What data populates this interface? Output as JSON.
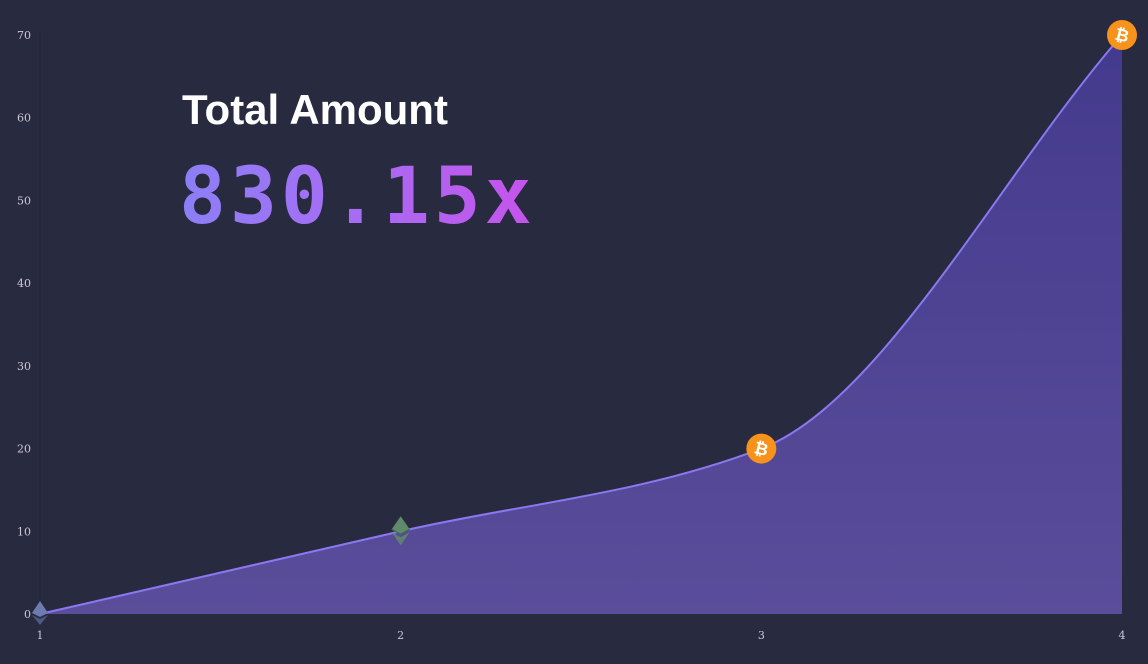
{
  "headline": {
    "title": "Total Amount",
    "multiplier": "830.15x"
  },
  "chart_data": {
    "type": "area",
    "x": [
      1,
      2,
      3,
      4
    ],
    "series": [
      {
        "values": [
          0,
          10,
          20,
          70
        ],
        "markers": [
          "ethereum-icon",
          "ethereum-classic-icon",
          "bitcoin-icon",
          "bitcoin-icon"
        ]
      }
    ],
    "x_ticks": [
      "1",
      "2",
      "3",
      "4"
    ],
    "y_ticks": [
      "0",
      "10",
      "20",
      "30",
      "40",
      "50",
      "60",
      "70"
    ],
    "xlim": [
      1,
      4
    ],
    "ylim": [
      0,
      70
    ],
    "grid": false,
    "title": "",
    "xlabel": "",
    "ylabel": ""
  },
  "colors": {
    "background": "#282a3f",
    "area_fill": "#4e4390",
    "line": "#8b77f0",
    "bitcoin": "#f7931a",
    "ethereum": "#6d7bb0",
    "ethereum_classic": "#5f8a6c"
  }
}
